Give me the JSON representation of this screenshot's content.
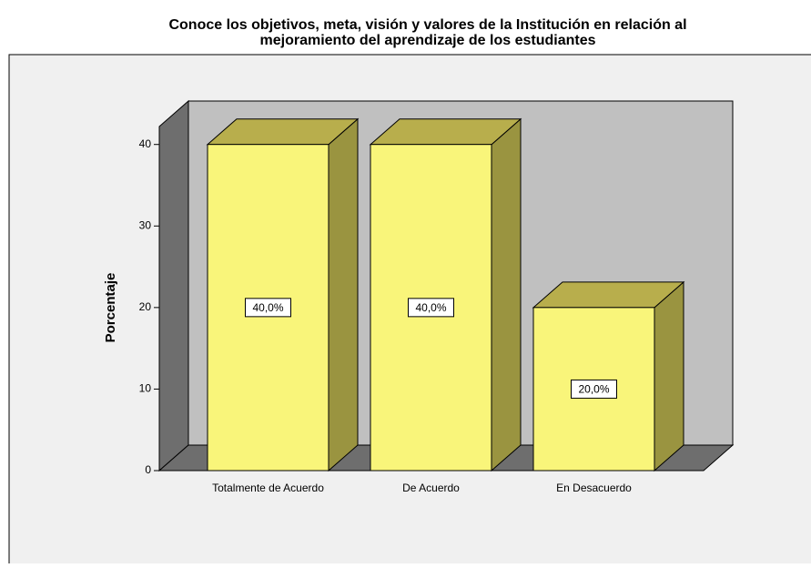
{
  "chart_data": {
    "type": "bar3d",
    "title": "Conoce  los objetivos, meta, visión y valores de la Institución en relación al",
    "subtitle": "mejoramiento del aprendizaje de los estudiantes",
    "y_label": "Porcentaje",
    "categories": [
      "Totalmente de Acuerdo",
      "De Acuerdo",
      "En Desacuerdo"
    ],
    "values": [
      40,
      40,
      20
    ],
    "value_labels": [
      "40,0%",
      "40,0%",
      "20,0%"
    ],
    "color": "#f9f57a",
    "ylim": [
      0,
      42.2
    ],
    "yticks": [
      0,
      10,
      20,
      30,
      40
    ]
  }
}
